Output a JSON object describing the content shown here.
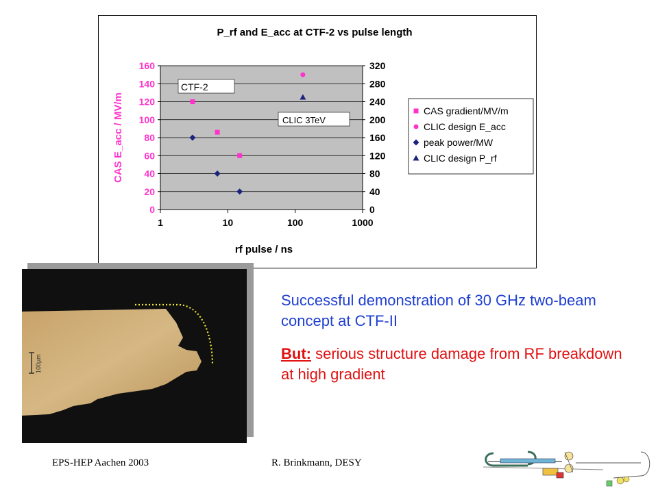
{
  "chart_data": {
    "type": "scatter",
    "title": "P_rf and E_acc at CTF-2 vs pulse length",
    "xlabel": "rf pulse / ns",
    "ylabel": "CAS E_acc / MV/m",
    "x_scale": "log",
    "xlim": [
      1,
      1000
    ],
    "ylim": [
      0,
      160
    ],
    "y2lim": [
      0,
      320
    ],
    "x_ticks": [
      "1",
      "10",
      "100",
      "1000"
    ],
    "y_ticks": [
      "0",
      "20",
      "40",
      "60",
      "80",
      "100",
      "120",
      "140",
      "160"
    ],
    "y2_ticks": [
      "0",
      "40",
      "80",
      "120",
      "160",
      "200",
      "240",
      "280",
      "320"
    ],
    "grid": "horizontal",
    "legend_position": "right",
    "series": [
      {
        "name": "CAS gradient/MV/m",
        "axis": "left",
        "marker": "square",
        "color": "#ff33cc",
        "x": [
          3,
          7,
          15
        ],
        "y": [
          120,
          86,
          60
        ]
      },
      {
        "name": "CLIC design E_acc",
        "axis": "left",
        "marker": "circle",
        "color": "#ff33cc",
        "x": [
          130
        ],
        "y": [
          150
        ]
      },
      {
        "name": "peak power/MW",
        "axis": "right",
        "marker": "diamond",
        "color": "#1a237e",
        "x": [
          3,
          7,
          15
        ],
        "y": [
          160,
          80,
          40
        ]
      },
      {
        "name": "CLIC design P_rf",
        "axis": "right",
        "marker": "triangle",
        "color": "#1a237e",
        "x": [
          130
        ],
        "y": [
          250
        ]
      }
    ],
    "annotations": [
      "CTF-2",
      "CLIC 3TeV"
    ]
  },
  "micrograph": {
    "scale_label": "100µm"
  },
  "text": {
    "line1": "Successful demonstration of 30 GHz two-beam concept at CTF-II",
    "but_label": "But:",
    "line2_rest": " serious structure damage from RF breakdown at high gradient"
  },
  "footer": {
    "left": "EPS-HEP Aachen 2003",
    "right": "R. Brinkmann, DESY"
  }
}
